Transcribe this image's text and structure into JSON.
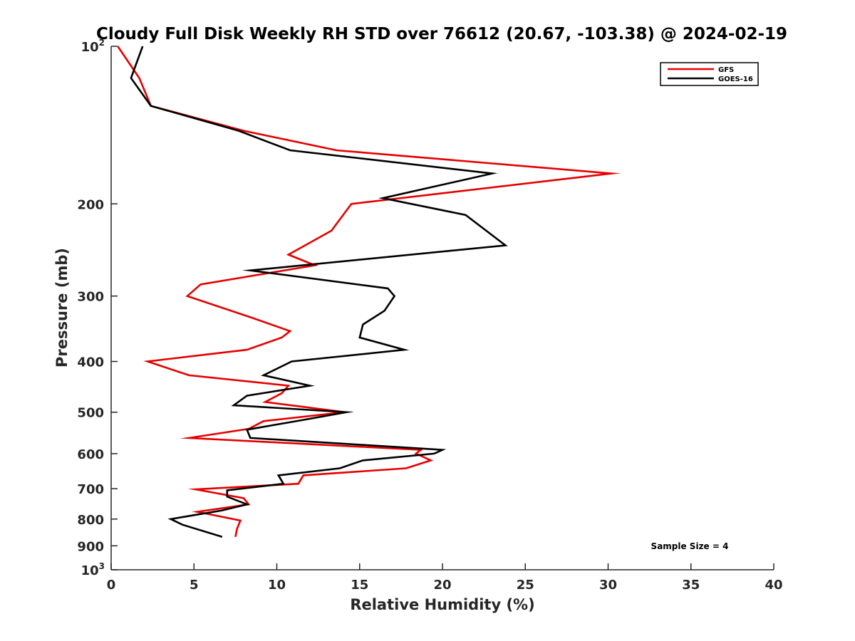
{
  "chart_data": {
    "type": "line",
    "title": "Cloudy Full Disk Weekly RH STD over 76612 (20.67, -103.38) @ 2024-02-19",
    "xlabel": "Relative Humidity (%)",
    "ylabel": "Pressure (mb)",
    "xlim": [
      0,
      40
    ],
    "ylim": [
      100,
      1000
    ],
    "yscale": "log",
    "yreversed": true,
    "grid": false,
    "x_ticks": [
      0,
      5,
      10,
      15,
      20,
      25,
      30,
      35,
      40
    ],
    "x_tick_labels": [
      "0",
      "5",
      "10",
      "15",
      "20",
      "25",
      "30",
      "35",
      "40"
    ],
    "y_ticks": [
      {
        "value": 100,
        "base": "10",
        "exp": "2"
      },
      {
        "value": 200,
        "label": "200"
      },
      {
        "value": 300,
        "label": "300"
      },
      {
        "value": 400,
        "label": "400"
      },
      {
        "value": 500,
        "label": "500"
      },
      {
        "value": 600,
        "label": "600"
      },
      {
        "value": 700,
        "label": "700"
      },
      {
        "value": 800,
        "label": "800"
      },
      {
        "value": 900,
        "label": "900"
      },
      {
        "value": 1000,
        "base": "10",
        "exp": "3"
      }
    ],
    "legend_position": "top-right",
    "annotation": "Sample Size = 4",
    "series": [
      {
        "name": "GFS",
        "color": "#e60000",
        "points": [
          [
            0.4,
            100
          ],
          [
            1.7,
            115
          ],
          [
            2.4,
            130
          ],
          [
            8.0,
            145
          ],
          [
            13.6,
            158
          ],
          [
            30.2,
            175
          ],
          [
            14.5,
            200
          ],
          [
            13.3,
            225
          ],
          [
            10.7,
            250
          ],
          [
            12.3,
            262
          ],
          [
            5.4,
            285
          ],
          [
            4.6,
            300
          ],
          [
            8.5,
            330
          ],
          [
            10.8,
            350
          ],
          [
            10.3,
            360
          ],
          [
            8.2,
            380
          ],
          [
            2.2,
            400
          ],
          [
            4.7,
            425
          ],
          [
            10.7,
            445
          ],
          [
            10.3,
            460
          ],
          [
            9.3,
            478
          ],
          [
            14.1,
            500
          ],
          [
            9.2,
            520
          ],
          [
            8.3,
            538
          ],
          [
            4.7,
            560
          ],
          [
            18.7,
            590
          ],
          [
            18.4,
            600
          ],
          [
            19.3,
            618
          ],
          [
            17.8,
            640
          ],
          [
            11.6,
            660
          ],
          [
            11.3,
            685
          ],
          [
            5.1,
            702
          ],
          [
            8.0,
            730
          ],
          [
            8.3,
            750
          ],
          [
            5.2,
            775
          ],
          [
            7.8,
            805
          ],
          [
            7.6,
            835
          ],
          [
            7.5,
            865
          ]
        ]
      },
      {
        "name": "GOES-16",
        "color": "#000000",
        "points": [
          [
            1.9,
            100
          ],
          [
            1.2,
            115
          ],
          [
            2.4,
            130
          ],
          [
            7.7,
            145
          ],
          [
            10.8,
            158
          ],
          [
            23.0,
            175
          ],
          [
            16.4,
            195
          ],
          [
            21.4,
            210
          ],
          [
            23.8,
            240
          ],
          [
            8.4,
            268
          ],
          [
            16.7,
            290
          ],
          [
            17.1,
            300
          ],
          [
            16.5,
            320
          ],
          [
            15.2,
            340
          ],
          [
            15.0,
            360
          ],
          [
            17.7,
            380
          ],
          [
            10.9,
            400
          ],
          [
            9.2,
            425
          ],
          [
            12.0,
            445
          ],
          [
            8.2,
            465
          ],
          [
            7.4,
            485
          ],
          [
            14.2,
            500
          ],
          [
            11.5,
            518
          ],
          [
            8.2,
            540
          ],
          [
            8.4,
            560
          ],
          [
            20.0,
            590
          ],
          [
            19.5,
            600
          ],
          [
            15.2,
            618
          ],
          [
            13.8,
            640
          ],
          [
            10.1,
            660
          ],
          [
            10.4,
            685
          ],
          [
            7.0,
            705
          ],
          [
            7.0,
            725
          ],
          [
            8.2,
            750
          ],
          [
            6.7,
            770
          ],
          [
            3.6,
            800
          ],
          [
            4.3,
            820
          ],
          [
            6.7,
            865
          ]
        ]
      }
    ]
  }
}
